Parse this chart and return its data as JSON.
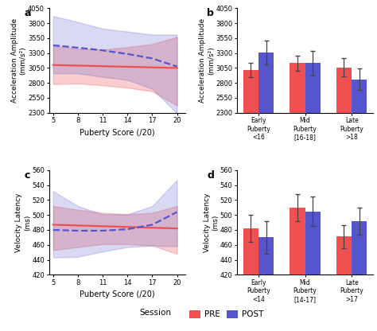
{
  "panel_a": {
    "x_ticks": [
      5,
      8,
      11,
      14,
      17,
      20
    ],
    "xlabel": "Puberty Score (/20)",
    "ylabel": "Acceleration Amplitude\n(mm/s²)",
    "ylim": [
      2300,
      4050
    ],
    "yticks": [
      2300,
      2550,
      2800,
      3050,
      3300,
      3550,
      3800,
      4050
    ],
    "pre_line": [
      3100,
      3090,
      3080,
      3070,
      3060,
      3050
    ],
    "pre_ci_upper": [
      3420,
      3370,
      3360,
      3400,
      3450,
      3570
    ],
    "pre_ci_lower": [
      2780,
      2790,
      2760,
      2720,
      2660,
      2420
    ],
    "post_line": [
      3430,
      3390,
      3345,
      3285,
      3210,
      3075
    ],
    "post_ci_upper": [
      3920,
      3820,
      3710,
      3660,
      3610,
      3610
    ],
    "post_ci_lower": [
      2960,
      2960,
      2900,
      2850,
      2700,
      2290
    ]
  },
  "panel_b": {
    "categories": [
      "Early\nPuberty\n<16",
      "Mid\nPuberty\n[16-18]",
      "Late\nPuberty\n>18"
    ],
    "ylabel": "Acceleration Amplitude\n(mm/s²)",
    "ylim": [
      2300,
      4050
    ],
    "yticks": [
      2300,
      2550,
      2800,
      3050,
      3300,
      3550,
      3800,
      4050
    ],
    "pre_means": [
      3020,
      3130,
      3060
    ],
    "pre_errors": [
      120,
      130,
      150
    ],
    "post_means": [
      3310,
      3130,
      2860
    ],
    "post_errors": [
      200,
      210,
      180
    ]
  },
  "panel_c": {
    "x_ticks": [
      5,
      8,
      11,
      14,
      17,
      20
    ],
    "xlabel": "Puberty Score (/20)",
    "ylabel": "Velocity Latency\n(ms)",
    "ylim": [
      420,
      560
    ],
    "yticks": [
      420,
      440,
      460,
      480,
      500,
      520,
      540,
      560
    ],
    "pre_line": [
      487,
      486,
      485,
      484,
      483,
      482
    ],
    "pre_ci_upper": [
      512,
      507,
      503,
      501,
      503,
      512
    ],
    "pre_ci_lower": [
      453,
      457,
      461,
      461,
      459,
      448
    ],
    "post_line": [
      480,
      479,
      479,
      481,
      487,
      504
    ],
    "post_ci_upper": [
      532,
      512,
      501,
      501,
      512,
      547
    ],
    "post_ci_lower": [
      443,
      444,
      451,
      457,
      459,
      458
    ]
  },
  "panel_d": {
    "categories": [
      "Early\nPuberty\n<14",
      "Mid\nPuberty\n[14-17]",
      "Late\nPuberty\n>17"
    ],
    "ylabel": "Velocity Latency\n(ms)",
    "ylim": [
      420,
      560
    ],
    "yticks": [
      420,
      440,
      460,
      480,
      500,
      520,
      540,
      560
    ],
    "pre_means": [
      482,
      510,
      471
    ],
    "pre_errors": [
      18,
      18,
      15
    ],
    "post_means": [
      470,
      505,
      492
    ],
    "post_errors": [
      22,
      20,
      18
    ]
  },
  "pre_color": "#F05050",
  "post_color": "#5555CC",
  "pre_fill_alpha": 0.28,
  "post_fill_alpha": 0.22,
  "bar_width": 0.33,
  "background_color": "#FFFFFF"
}
